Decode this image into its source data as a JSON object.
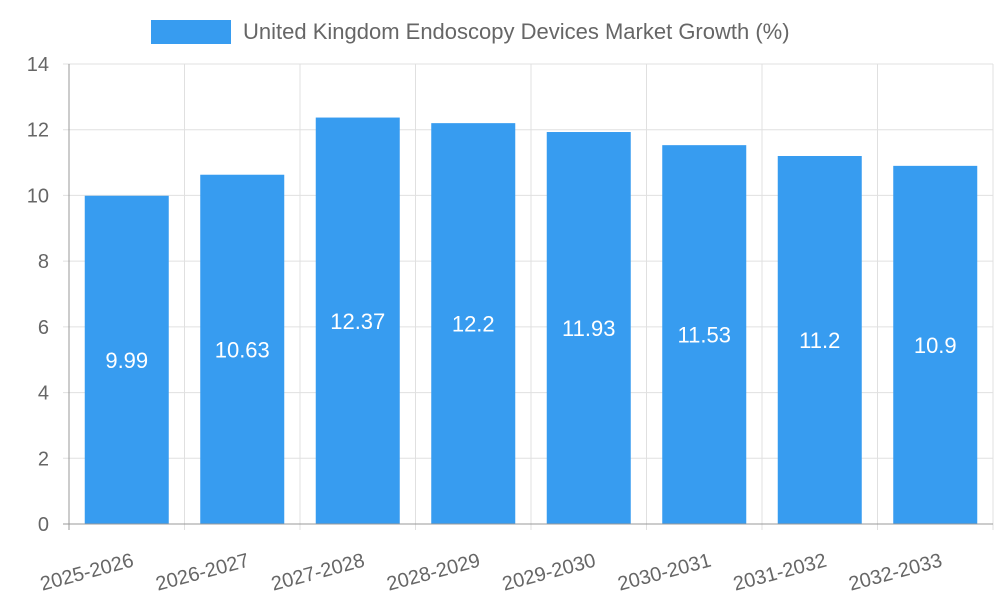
{
  "chart_data": {
    "type": "bar",
    "legend": {
      "label": "United Kingdom Endoscopy Devices Market Growth (%)",
      "position": "top-center"
    },
    "categories": [
      "2025-2026",
      "2026-2027",
      "2027-2028",
      "2028-2029",
      "2029-2030",
      "2030-2031",
      "2031-2032",
      "2032-2033"
    ],
    "series": [
      {
        "name": "United Kingdom Endoscopy Devices Market Growth (%)",
        "values": [
          9.99,
          10.63,
          12.37,
          12.2,
          11.93,
          11.53,
          11.2,
          10.9
        ],
        "color": "#379CF0"
      }
    ],
    "data_labels": [
      "9.99",
      "10.63",
      "12.37",
      "12.2",
      "11.93",
      "11.53",
      "11.2",
      "10.9"
    ],
    "ylim": [
      0,
      14
    ],
    "yticks": [
      0,
      2,
      4,
      6,
      8,
      10,
      12,
      14
    ],
    "grid": true,
    "xlabel": "",
    "ylabel": ""
  }
}
